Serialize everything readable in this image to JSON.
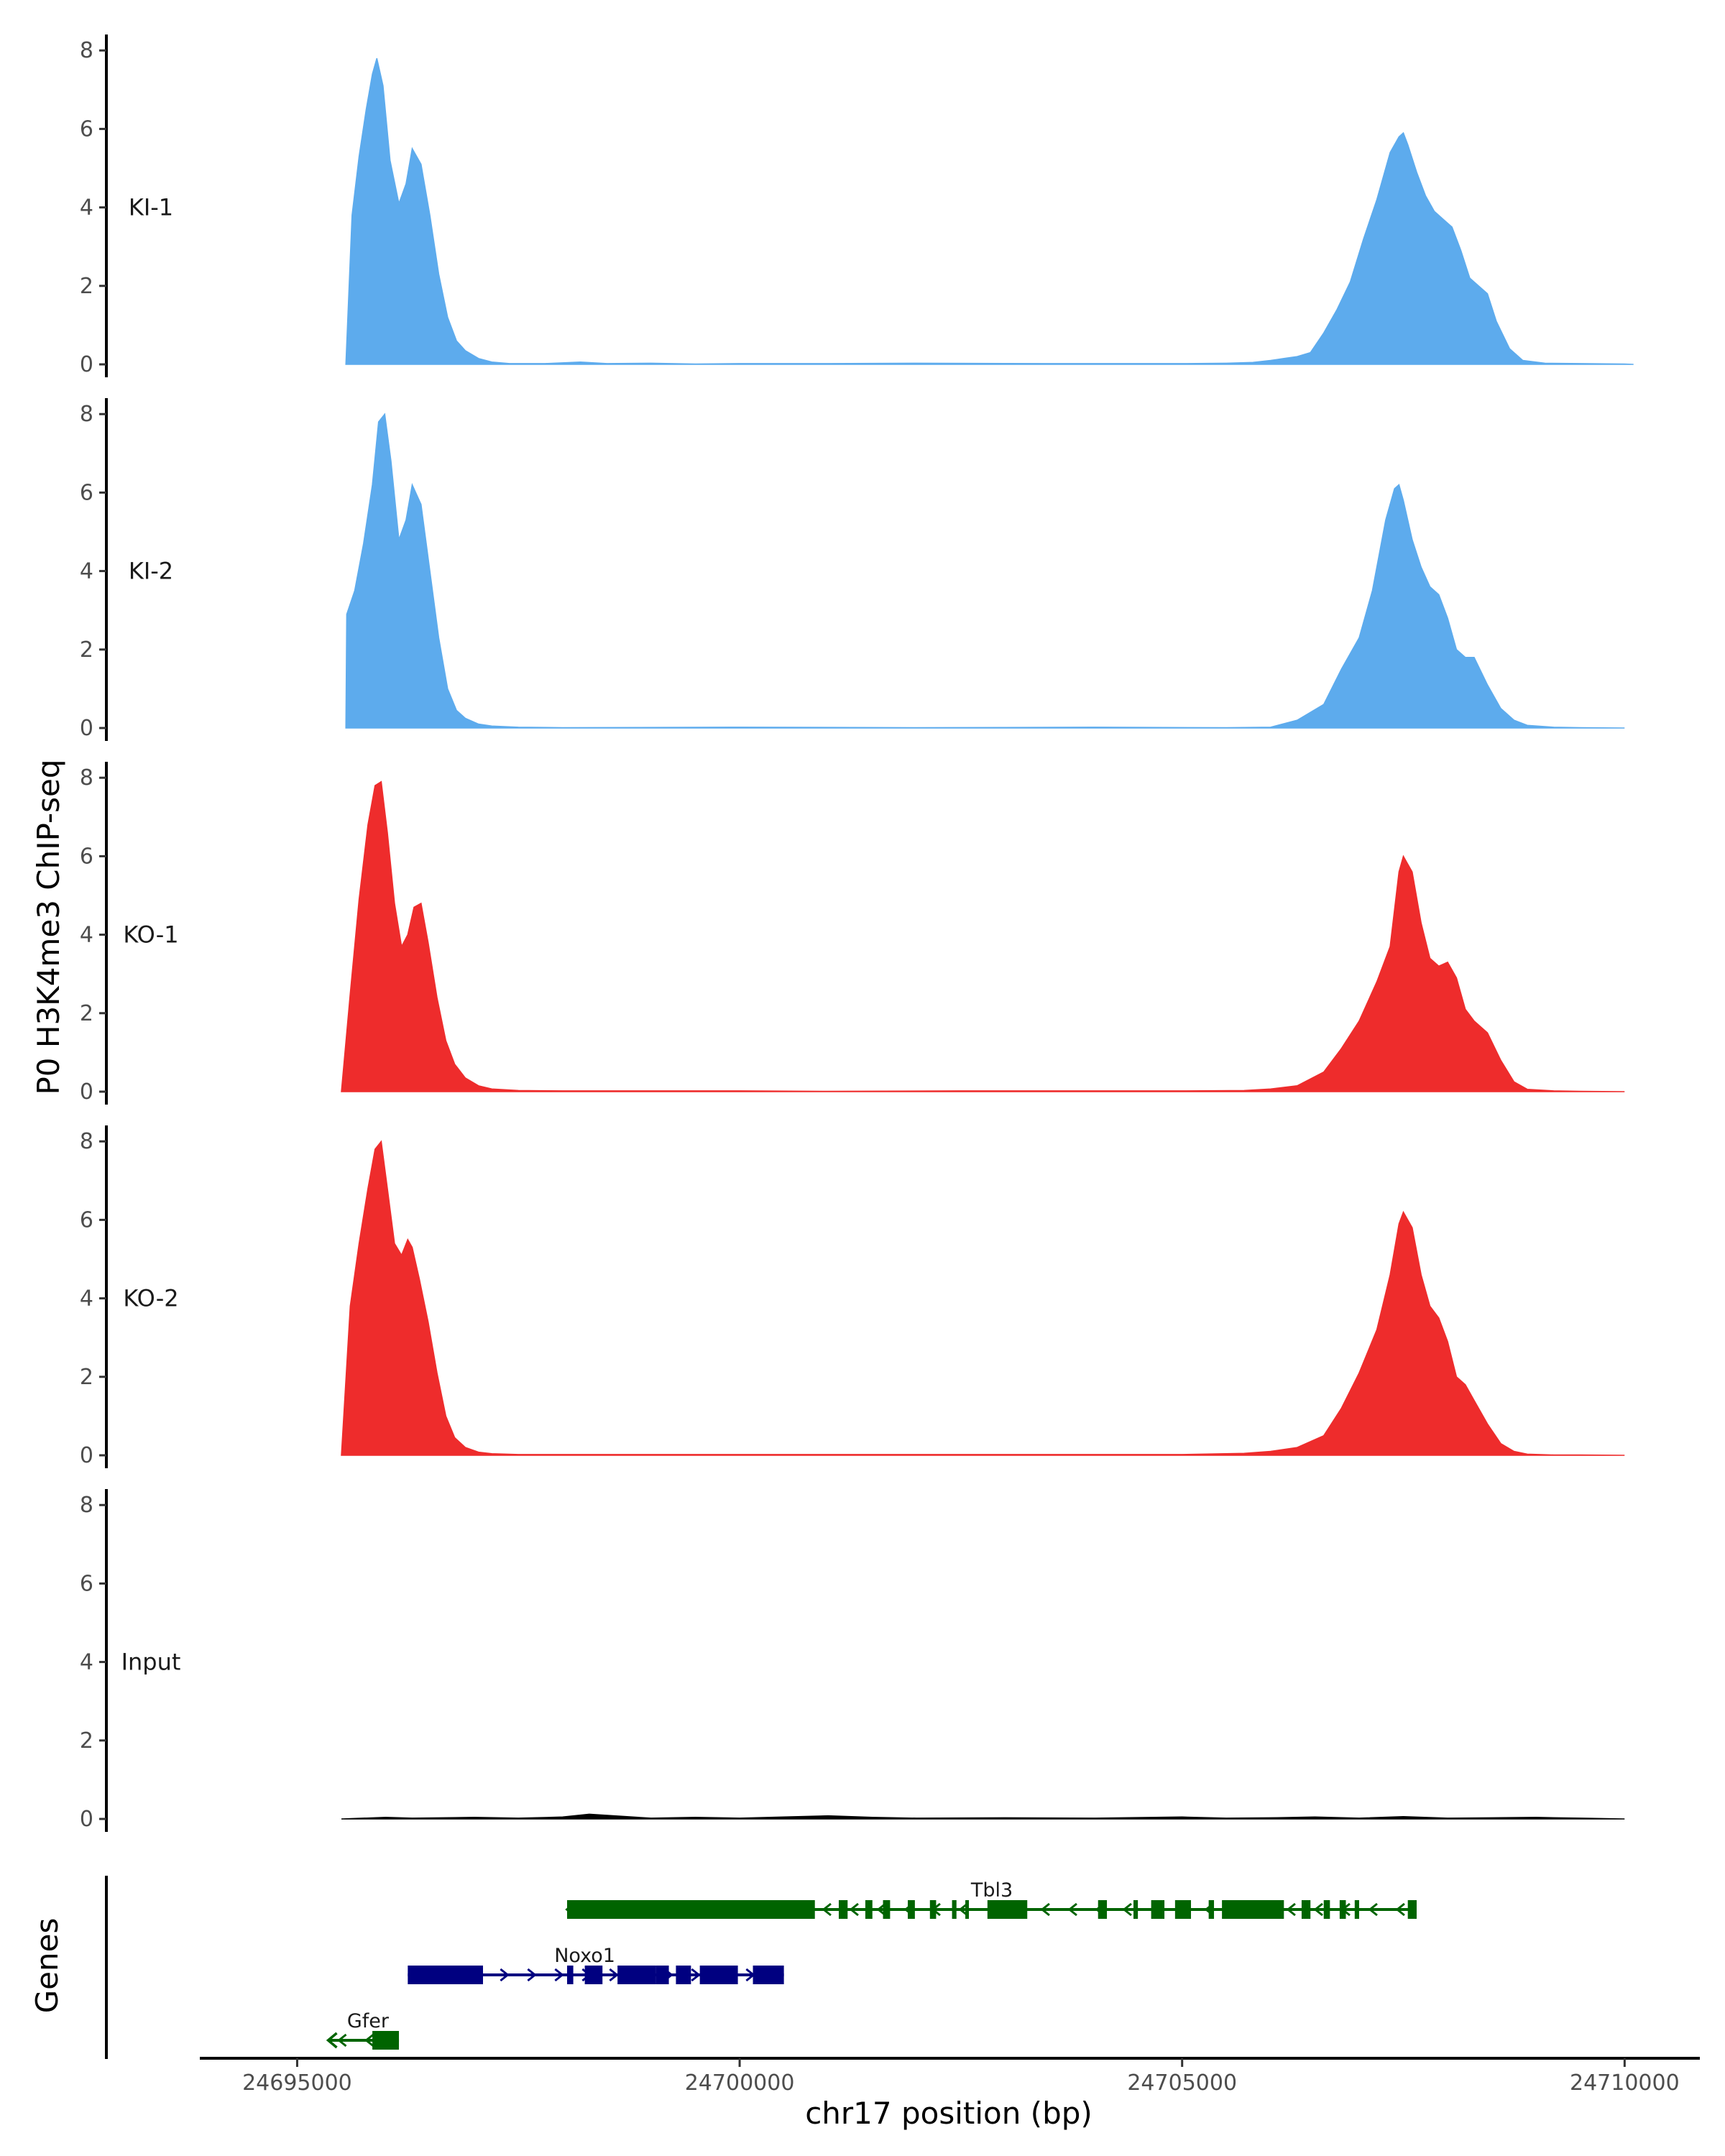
{
  "chart_data": {
    "type": "area",
    "ylabel": "P0 H3K4me3 ChIP-seq",
    "xlabel": "chr17 position (bp)",
    "genes_label": "Genes",
    "ylim": [
      0,
      8.4
    ],
    "yticks": [
      0,
      2,
      4,
      6,
      8
    ],
    "xlim": [
      24693900,
      24710850
    ],
    "xticks": [
      24695000,
      24700000,
      24705000,
      24710000
    ],
    "xtick_labels": [
      "24695000",
      "24700000",
      "24705000",
      "24710000"
    ],
    "colors": {
      "KI": "#5DABED",
      "KO": "#EE2C2C",
      "Input": "#000000",
      "gene_plus": "#000080",
      "gene_minus": "#006400"
    },
    "tracks": [
      {
        "name": "KI-1",
        "color": "#5DABED",
        "x": [
          24695550,
          24695620,
          24695700,
          24695780,
          24695850,
          24695900,
          24695970,
          24696050,
          24696150,
          24696230,
          24696300,
          24696400,
          24696500,
          24696600,
          24696700,
          24696800,
          24696900,
          24697050,
          24697200,
          24697400,
          24697800,
          24698200,
          24698500,
          24699000,
          24699500,
          24700000,
          24701000,
          24702000,
          24703500,
          24705000,
          24705500,
          24705800,
          24706000,
          24706150,
          24706300,
          24706450,
          24706600,
          24706750,
          24706900,
          24707050,
          24707200,
          24707350,
          24707450,
          24707500,
          24707550,
          24707650,
          24707750,
          24707850,
          24707950,
          24708050,
          24708150,
          24708250,
          24708350,
          24708450,
          24708550,
          24708700,
          24708850,
          24709100,
          24709500,
          24710000,
          24710100
        ],
        "y": [
          0,
          3.8,
          5.3,
          6.5,
          7.4,
          7.8,
          7.1,
          5.2,
          4.1,
          4.6,
          5.5,
          5.1,
          3.8,
          2.3,
          1.2,
          0.6,
          0.35,
          0.15,
          0.06,
          0.02,
          0.02,
          0.06,
          0.02,
          0.03,
          0.01,
          0.02,
          0.02,
          0.03,
          0.02,
          0.02,
          0.03,
          0.05,
          0.1,
          0.15,
          0.2,
          0.3,
          0.8,
          1.4,
          2.1,
          3.2,
          4.2,
          5.4,
          5.8,
          5.9,
          5.6,
          4.9,
          4.3,
          3.9,
          3.7,
          3.5,
          2.9,
          2.2,
          2.0,
          1.8,
          1.1,
          0.4,
          0.1,
          0.03,
          0.02,
          0.01,
          0
        ]
      },
      {
        "name": "KI-2",
        "color": "#5DABED",
        "x": [
          24695550,
          24695560,
          24695650,
          24695750,
          24695850,
          24695920,
          24695990,
          24696060,
          24696150,
          24696230,
          24696300,
          24696400,
          24696500,
          24696600,
          24696700,
          24696800,
          24696900,
          24697050,
          24697200,
          24697500,
          24698000,
          24700000,
          24702000,
          24704000,
          24705500,
          24706000,
          24706300,
          24706600,
          24706800,
          24707000,
          24707150,
          24707300,
          24707400,
          24707450,
          24707500,
          24707600,
          24707700,
          24707800,
          24707900,
          24708000,
          24708100,
          24708200,
          24708300,
          24708450,
          24708600,
          24708750,
          24708900,
          24709200,
          24709500,
          24710000
        ],
        "y": [
          0,
          2.9,
          3.5,
          4.7,
          6.2,
          7.8,
          8.0,
          6.8,
          4.8,
          5.3,
          6.2,
          5.7,
          4.0,
          2.3,
          1.0,
          0.45,
          0.25,
          0.1,
          0.05,
          0.02,
          0.01,
          0.02,
          0.01,
          0.02,
          0.01,
          0.02,
          0.2,
          0.6,
          1.5,
          2.3,
          3.5,
          5.3,
          6.1,
          6.2,
          5.8,
          4.8,
          4.1,
          3.6,
          3.4,
          2.8,
          2.0,
          1.8,
          1.8,
          1.1,
          0.5,
          0.2,
          0.07,
          0.02,
          0.01,
          0
        ]
      },
      {
        "name": "KO-1",
        "color": "#EE2C2C",
        "x": [
          24695500,
          24695600,
          24695700,
          24695800,
          24695880,
          24695950,
          24696020,
          24696100,
          24696180,
          24696250,
          24696320,
          24696400,
          24696480,
          24696580,
          24696680,
          24696780,
          24696900,
          24697050,
          24697200,
          24697500,
          24698000,
          24699000,
          24700000,
          24701000,
          24702500,
          24704000,
          24705000,
          24705700,
          24706000,
          24706300,
          24706600,
          24706800,
          24707000,
          24707200,
          24707350,
          24707450,
          24707500,
          24707600,
          24707700,
          24707800,
          24707900,
          24708000,
          24708100,
          24708200,
          24708300,
          24708450,
          24708600,
          24708750,
          24708900,
          24709200,
          24709500,
          24710000
        ],
        "y": [
          0,
          2.5,
          4.9,
          6.8,
          7.8,
          7.9,
          6.6,
          4.8,
          3.7,
          4.0,
          4.7,
          4.8,
          3.8,
          2.4,
          1.3,
          0.7,
          0.35,
          0.15,
          0.07,
          0.03,
          0.02,
          0.02,
          0.02,
          0.01,
          0.02,
          0.02,
          0.02,
          0.03,
          0.07,
          0.15,
          0.5,
          1.1,
          1.8,
          2.8,
          3.7,
          5.6,
          6.0,
          5.6,
          4.3,
          3.4,
          3.2,
          3.3,
          2.9,
          2.1,
          1.8,
          1.5,
          0.8,
          0.25,
          0.06,
          0.02,
          0.01,
          0
        ]
      },
      {
        "name": "KO-2",
        "color": "#EE2C2C",
        "x": [
          24695500,
          24695600,
          24695700,
          24695800,
          24695880,
          24695950,
          24696020,
          24696100,
          24696180,
          24696250,
          24696300,
          24696380,
          24696480,
          24696580,
          24696680,
          24696780,
          24696900,
          24697050,
          24697200,
          24697500,
          24698000,
          24699000,
          24700000,
          24701000,
          24702500,
          24704000,
          24705000,
          24705700,
          24706000,
          24706300,
          24706600,
          24706800,
          24707000,
          24707200,
          24707350,
          24707450,
          24707500,
          24707600,
          24707700,
          24707800,
          24707900,
          24708000,
          24708100,
          24708200,
          24708300,
          24708450,
          24708600,
          24708750,
          24708900,
          24709200,
          24709500,
          24710000
        ],
        "y": [
          0,
          3.8,
          5.4,
          6.8,
          7.8,
          8.0,
          6.8,
          5.4,
          5.1,
          5.5,
          5.3,
          4.5,
          3.4,
          2.1,
          1.0,
          0.45,
          0.2,
          0.08,
          0.04,
          0.02,
          0.02,
          0.02,
          0.02,
          0.02,
          0.02,
          0.02,
          0.02,
          0.05,
          0.1,
          0.2,
          0.5,
          1.2,
          2.1,
          3.2,
          4.6,
          5.9,
          6.2,
          5.8,
          4.6,
          3.8,
          3.5,
          2.9,
          2.0,
          1.8,
          1.4,
          0.8,
          0.3,
          0.1,
          0.03,
          0.01,
          0.01,
          0
        ]
      },
      {
        "name": "Input",
        "color": "#000000",
        "x": [
          24695500,
          24696000,
          24696300,
          24697000,
          24697500,
          24698000,
          24698300,
          24699000,
          24699500,
          24700000,
          24700500,
          24701000,
          24701500,
          24702000,
          24703000,
          24704000,
          24705000,
          24705500,
          24706000,
          24706500,
          24707000,
          24707500,
          24708000,
          24708500,
          24709000,
          24709500,
          24710000
        ],
        "y": [
          0,
          0.04,
          0.02,
          0.04,
          0.02,
          0.05,
          0.12,
          0.02,
          0.04,
          0.02,
          0.05,
          0.08,
          0.04,
          0.02,
          0.03,
          0.02,
          0.05,
          0.02,
          0.03,
          0.05,
          0.02,
          0.06,
          0.02,
          0.03,
          0.04,
          0.02,
          0
        ]
      }
    ],
    "genes": [
      {
        "name": "Tbl3",
        "strand": "-",
        "color": "#006400",
        "start": 24698050,
        "end": 24707650,
        "exons": [
          [
            24698050,
            24700850
          ],
          [
            24701120,
            24701220
          ],
          [
            24701420,
            24701500
          ],
          [
            24701620,
            24701700
          ],
          [
            24701900,
            24701980
          ],
          [
            24702150,
            24702220
          ],
          [
            24702400,
            24702450
          ],
          [
            24702550,
            24702580
          ],
          [
            24702800,
            24703250
          ],
          [
            24704050,
            24704150
          ],
          [
            24704450,
            24704500
          ],
          [
            24704650,
            24704800
          ],
          [
            24704920,
            24705100
          ],
          [
            24705300,
            24705360
          ],
          [
            24705450,
            24706150
          ],
          [
            24706350,
            24706450
          ],
          [
            24706600,
            24706670
          ],
          [
            24706780,
            24706850
          ],
          [
            24706950,
            24707000
          ],
          [
            24707550,
            24707650
          ]
        ],
        "label_x": 24702850
      },
      {
        "name": "Noxo1",
        "strand": "+",
        "color": "#000080",
        "start": 24696250,
        "end": 24700500,
        "exons": [
          [
            24696250,
            24697100
          ],
          [
            24698050,
            24698120
          ],
          [
            24698250,
            24698450
          ],
          [
            24698620,
            24699050
          ],
          [
            24699050,
            24699200
          ],
          [
            24699280,
            24699450
          ],
          [
            24699550,
            24699980
          ],
          [
            24700150,
            24700500
          ]
        ],
        "label_x": 24698250
      },
      {
        "name": "Gfer",
        "strand": "-",
        "color": "#006400",
        "start": 24695350,
        "end": 24696150,
        "exons": [
          [
            24695850,
            24696150
          ]
        ],
        "label_x": 24695800
      }
    ]
  }
}
